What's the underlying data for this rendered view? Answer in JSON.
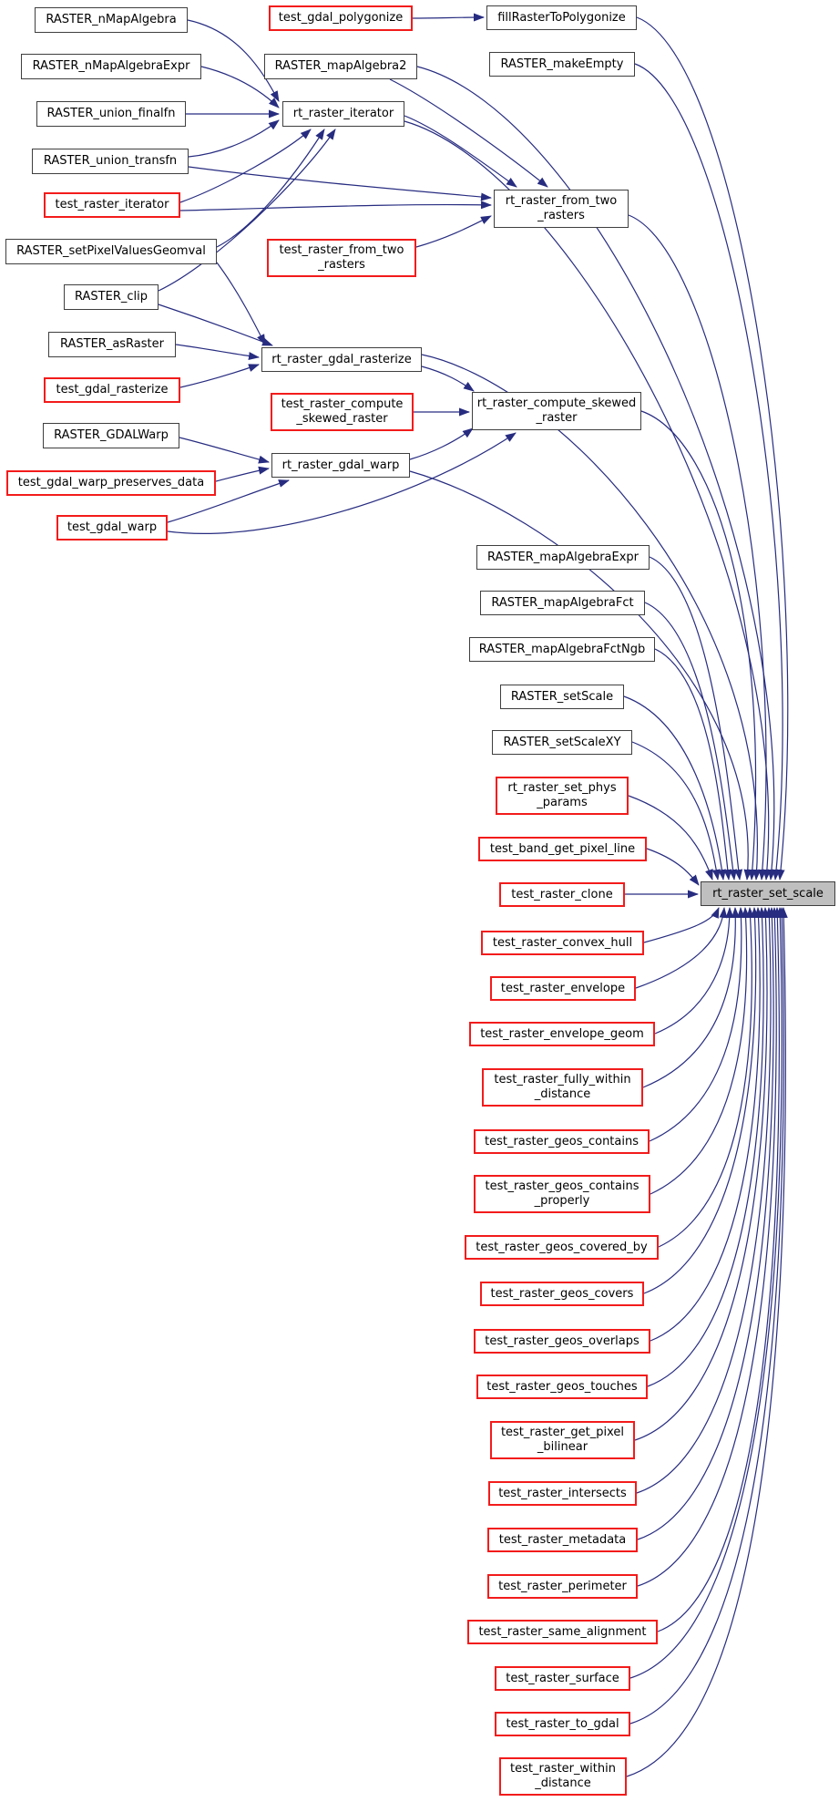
{
  "diagram": {
    "kind": "doxygen-caller-graph",
    "focus_function": "rt_raster_set_scale"
  },
  "colors": {
    "edge": "#272c80",
    "plain_border": "#3f3f3f",
    "test_border": "#f31b1b",
    "hub_fill": "#bfbfbf",
    "background": "#ffffff",
    "text": "#000000"
  },
  "nodes": [
    {
      "id": "n1",
      "label": "RASTER_nMapAlgebra",
      "style": "plain"
    },
    {
      "id": "n2",
      "label": "RASTER_nMapAlgebraExpr",
      "style": "plain"
    },
    {
      "id": "n3",
      "label": "RASTER_union_finalfn",
      "style": "plain"
    },
    {
      "id": "n4",
      "label": "RASTER_union_transfn",
      "style": "plain"
    },
    {
      "id": "n5",
      "label": "test_raster_iterator",
      "style": "test"
    },
    {
      "id": "n6",
      "label": "RASTER_setPixelValuesGeomval",
      "style": "plain"
    },
    {
      "id": "n7",
      "label": "RASTER_clip",
      "style": "plain"
    },
    {
      "id": "n8",
      "label": "RASTER_asRaster",
      "style": "plain"
    },
    {
      "id": "n9",
      "label": "test_gdal_rasterize",
      "style": "test"
    },
    {
      "id": "n10",
      "label": "RASTER_GDALWarp",
      "style": "plain"
    },
    {
      "id": "n11",
      "label": "test_gdal_warp_preserves_data",
      "style": "test"
    },
    {
      "id": "n12",
      "label": "test_gdal_warp",
      "style": "test"
    },
    {
      "id": "n13",
      "label": "test_gdal_polygonize",
      "style": "test"
    },
    {
      "id": "n14",
      "label": "RASTER_mapAlgebra2",
      "style": "plain"
    },
    {
      "id": "n15",
      "label": "rt_raster_iterator",
      "style": "plain"
    },
    {
      "id": "n16",
      "label": "test_raster_from_two\n_rasters",
      "style": "test"
    },
    {
      "id": "n17",
      "label": "test_raster_compute\n_skewed_raster",
      "style": "test"
    },
    {
      "id": "n18",
      "label": "rt_raster_gdal_rasterize",
      "style": "plain"
    },
    {
      "id": "n19",
      "label": "rt_raster_gdal_warp",
      "style": "plain"
    },
    {
      "id": "n20",
      "label": "fillRasterToPolygonize",
      "style": "plain"
    },
    {
      "id": "n21",
      "label": "RASTER_makeEmpty",
      "style": "plain"
    },
    {
      "id": "n22",
      "label": "rt_raster_from_two\n_rasters",
      "style": "plain"
    },
    {
      "id": "n23",
      "label": "rt_raster_compute_skewed\n_raster",
      "style": "plain"
    },
    {
      "id": "n24",
      "label": "RASTER_mapAlgebraExpr",
      "style": "plain"
    },
    {
      "id": "n25",
      "label": "RASTER_mapAlgebraFct",
      "style": "plain"
    },
    {
      "id": "n26",
      "label": "RASTER_mapAlgebraFctNgb",
      "style": "plain"
    },
    {
      "id": "n27",
      "label": "RASTER_setScale",
      "style": "plain"
    },
    {
      "id": "n28",
      "label": "RASTER_setScaleXY",
      "style": "plain"
    },
    {
      "id": "n29",
      "label": "rt_raster_set_phys\n_params",
      "style": "test"
    },
    {
      "id": "n30",
      "label": "test_band_get_pixel_line",
      "style": "test"
    },
    {
      "id": "n31",
      "label": "test_raster_clone",
      "style": "test"
    },
    {
      "id": "n32",
      "label": "test_raster_convex_hull",
      "style": "test"
    },
    {
      "id": "n33",
      "label": "test_raster_envelope",
      "style": "test"
    },
    {
      "id": "n34",
      "label": "test_raster_envelope_geom",
      "style": "test"
    },
    {
      "id": "n35",
      "label": "test_raster_fully_within\n_distance",
      "style": "test"
    },
    {
      "id": "n36",
      "label": "test_raster_geos_contains",
      "style": "test"
    },
    {
      "id": "n37",
      "label": "test_raster_geos_contains\n_properly",
      "style": "test"
    },
    {
      "id": "n38",
      "label": "test_raster_geos_covered_by",
      "style": "test"
    },
    {
      "id": "n39",
      "label": "test_raster_geos_covers",
      "style": "test"
    },
    {
      "id": "n40",
      "label": "test_raster_geos_overlaps",
      "style": "test"
    },
    {
      "id": "n41",
      "label": "test_raster_geos_touches",
      "style": "test"
    },
    {
      "id": "n42",
      "label": "test_raster_get_pixel\n_bilinear",
      "style": "test"
    },
    {
      "id": "n43",
      "label": "test_raster_intersects",
      "style": "test"
    },
    {
      "id": "n44",
      "label": "test_raster_metadata",
      "style": "test"
    },
    {
      "id": "n45",
      "label": "test_raster_perimeter",
      "style": "test"
    },
    {
      "id": "n46",
      "label": "test_raster_same_alignment",
      "style": "test"
    },
    {
      "id": "n47",
      "label": "test_raster_surface",
      "style": "test"
    },
    {
      "id": "n48",
      "label": "test_raster_to_gdal",
      "style": "test"
    },
    {
      "id": "n49",
      "label": "test_raster_within\n_distance",
      "style": "test"
    },
    {
      "id": "n50",
      "label": "rt_raster_set_scale",
      "style": "hub"
    }
  ],
  "edges": [
    {
      "from": "n13",
      "to": "n20"
    },
    {
      "from": "n1",
      "to": "n15"
    },
    {
      "from": "n2",
      "to": "n15"
    },
    {
      "from": "n3",
      "to": "n15"
    },
    {
      "from": "n4",
      "to": "n15"
    },
    {
      "from": "n5",
      "to": "n15"
    },
    {
      "from": "n6",
      "to": "n15"
    },
    {
      "from": "n7",
      "to": "n15"
    },
    {
      "from": "n14",
      "to": "n22"
    },
    {
      "from": "n15",
      "to": "n22"
    },
    {
      "from": "n4",
      "to": "n22"
    },
    {
      "from": "n5",
      "to": "n22"
    },
    {
      "from": "n16",
      "to": "n22"
    },
    {
      "from": "n6",
      "to": "n18"
    },
    {
      "from": "n7",
      "to": "n18"
    },
    {
      "from": "n8",
      "to": "n18"
    },
    {
      "from": "n9",
      "to": "n18"
    },
    {
      "from": "n10",
      "to": "n19"
    },
    {
      "from": "n11",
      "to": "n19"
    },
    {
      "from": "n12",
      "to": "n19"
    },
    {
      "from": "n18",
      "to": "n23"
    },
    {
      "from": "n17",
      "to": "n23"
    },
    {
      "from": "n19",
      "to": "n23"
    },
    {
      "from": "n12",
      "to": "n23"
    },
    {
      "from": "n20",
      "to": "n50"
    },
    {
      "from": "n21",
      "to": "n50"
    },
    {
      "from": "n14",
      "to": "n50"
    },
    {
      "from": "n15",
      "to": "n50"
    },
    {
      "from": "n22",
      "to": "n50"
    },
    {
      "from": "n18",
      "to": "n50"
    },
    {
      "from": "n23",
      "to": "n50"
    },
    {
      "from": "n19",
      "to": "n50"
    },
    {
      "from": "n24",
      "to": "n50"
    },
    {
      "from": "n25",
      "to": "n50"
    },
    {
      "from": "n26",
      "to": "n50"
    },
    {
      "from": "n27",
      "to": "n50"
    },
    {
      "from": "n28",
      "to": "n50"
    },
    {
      "from": "n29",
      "to": "n50"
    },
    {
      "from": "n30",
      "to": "n50"
    },
    {
      "from": "n31",
      "to": "n50"
    },
    {
      "from": "n32",
      "to": "n50"
    },
    {
      "from": "n33",
      "to": "n50"
    },
    {
      "from": "n34",
      "to": "n50"
    },
    {
      "from": "n35",
      "to": "n50"
    },
    {
      "from": "n36",
      "to": "n50"
    },
    {
      "from": "n37",
      "to": "n50"
    },
    {
      "from": "n38",
      "to": "n50"
    },
    {
      "from": "n39",
      "to": "n50"
    },
    {
      "from": "n40",
      "to": "n50"
    },
    {
      "from": "n41",
      "to": "n50"
    },
    {
      "from": "n42",
      "to": "n50"
    },
    {
      "from": "n43",
      "to": "n50"
    },
    {
      "from": "n44",
      "to": "n50"
    },
    {
      "from": "n45",
      "to": "n50"
    },
    {
      "from": "n46",
      "to": "n50"
    },
    {
      "from": "n47",
      "to": "n50"
    },
    {
      "from": "n48",
      "to": "n50"
    },
    {
      "from": "n49",
      "to": "n50"
    }
  ]
}
